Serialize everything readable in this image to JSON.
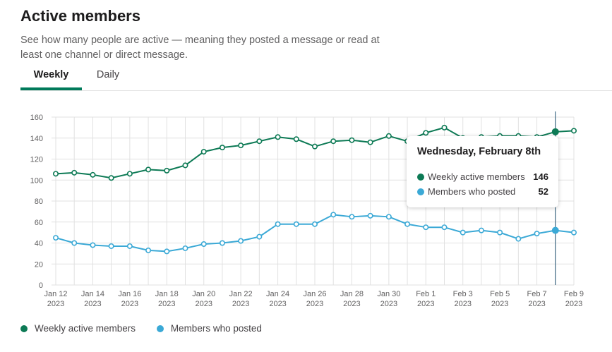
{
  "header": {
    "title": "Active members",
    "description": "See how many people are active — meaning they posted a message or read at least one channel or direct message."
  },
  "tabs": [
    {
      "label": "Weekly",
      "active": true
    },
    {
      "label": "Daily",
      "active": false
    }
  ],
  "colors": {
    "weekly": "#0d7a55",
    "posted": "#3ba9d6",
    "tab_accent": "#007a5a",
    "grid": "#e1e1e1"
  },
  "chart_data": {
    "type": "line",
    "ylim": [
      0,
      160
    ],
    "yticks": [
      0,
      20,
      40,
      60,
      80,
      100,
      120,
      140,
      160
    ],
    "x_labels": [
      {
        "line1": "Jan 12",
        "line2": "2023"
      },
      {
        "line1": "Jan 14",
        "line2": "2023"
      },
      {
        "line1": "Jan 16",
        "line2": "2023"
      },
      {
        "line1": "Jan 18",
        "line2": "2023"
      },
      {
        "line1": "Jan 20",
        "line2": "2023"
      },
      {
        "line1": "Jan 22",
        "line2": "2023"
      },
      {
        "line1": "Jan 24",
        "line2": "2023"
      },
      {
        "line1": "Jan 26",
        "line2": "2023"
      },
      {
        "line1": "Jan 28",
        "line2": "2023"
      },
      {
        "line1": "Jan 30",
        "line2": "2023"
      },
      {
        "line1": "Feb 1",
        "line2": "2023"
      },
      {
        "line1": "Feb 3",
        "line2": "2023"
      },
      {
        "line1": "Feb 5",
        "line2": "2023"
      },
      {
        "line1": "Feb 7",
        "line2": "2023"
      },
      {
        "line1": "Feb 9",
        "line2": "2023"
      }
    ],
    "x": [
      "2023-01-12",
      "2023-01-13",
      "2023-01-14",
      "2023-01-15",
      "2023-01-16",
      "2023-01-17",
      "2023-01-18",
      "2023-01-19",
      "2023-01-20",
      "2023-01-21",
      "2023-01-22",
      "2023-01-23",
      "2023-01-24",
      "2023-01-25",
      "2023-01-26",
      "2023-01-27",
      "2023-01-28",
      "2023-01-29",
      "2023-01-30",
      "2023-01-31",
      "2023-02-01",
      "2023-02-02",
      "2023-02-03",
      "2023-02-04",
      "2023-02-05",
      "2023-02-06",
      "2023-02-07",
      "2023-02-08",
      "2023-02-09"
    ],
    "series": [
      {
        "name": "Weekly active members",
        "values": [
          106,
          107,
          105,
          102,
          106,
          110,
          109,
          114,
          127,
          131,
          133,
          137,
          141,
          139,
          132,
          137,
          138,
          136,
          142,
          137,
          145,
          150,
          140,
          141,
          142,
          142,
          141,
          146,
          147
        ]
      },
      {
        "name": "Members who posted",
        "values": [
          45,
          40,
          38,
          37,
          37,
          33,
          32,
          35,
          39,
          40,
          42,
          46,
          58,
          58,
          58,
          67,
          65,
          66,
          65,
          58,
          55,
          55,
          50,
          52,
          50,
          44,
          49,
          52,
          50
        ]
      }
    ],
    "highlight_x": "2023-02-08",
    "grid": true,
    "legend": "bottom-left"
  },
  "tooltip": {
    "title": "Wednesday, February 8th",
    "rows": [
      {
        "label": "Weekly active members",
        "value": "146"
      },
      {
        "label": "Members who posted",
        "value": "52"
      }
    ]
  },
  "legend": [
    {
      "label": "Weekly active members"
    },
    {
      "label": "Members who posted"
    }
  ]
}
